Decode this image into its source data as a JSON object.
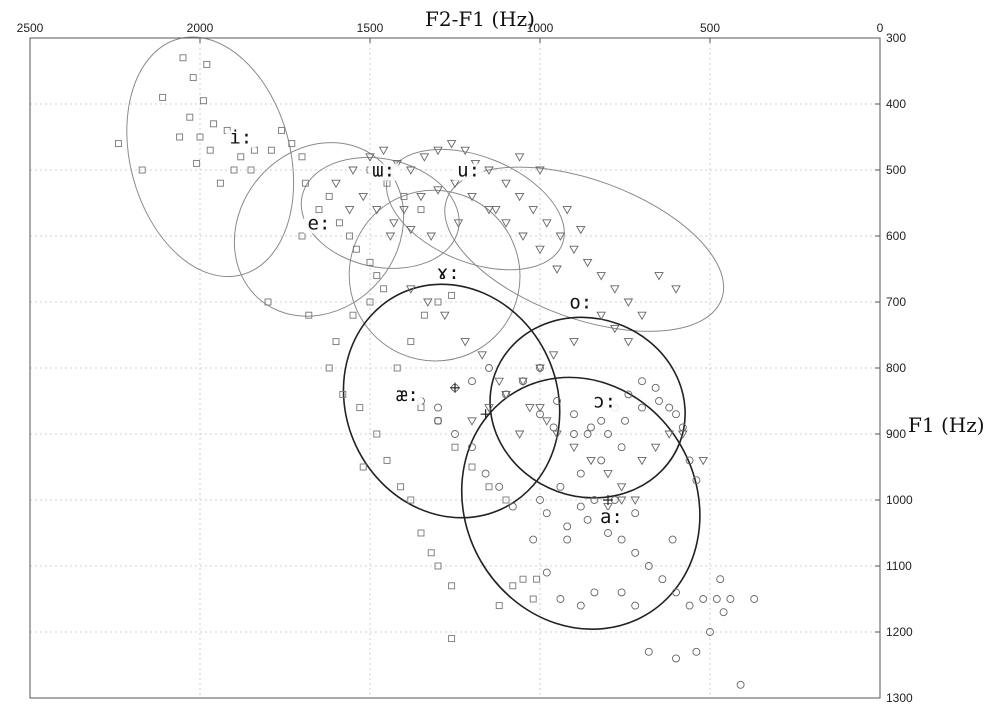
{
  "chart_data": {
    "type": "scatter",
    "title": "F2-F1 (Hz)",
    "xlabel": "F2-F1 (Hz)",
    "ylabel": "F1 (Hz)",
    "xlim": [
      2500,
      0
    ],
    "ylim": [
      300,
      1300
    ],
    "x_ticks": [
      "2500",
      "2000",
      "1500",
      "1000",
      "500",
      "0"
    ],
    "y_ticks": [
      "300",
      "400",
      "500",
      "600",
      "700",
      "800",
      "900",
      "1000",
      "1100",
      "1200",
      "1300"
    ],
    "grid": true,
    "vowels": [
      {
        "label": "i:",
        "x": 1880,
        "y": 460,
        "ellipse": {
          "cx": 1970,
          "cy": 480,
          "rx": 235,
          "ry": 185,
          "angle": -15,
          "weight": "light"
        }
      },
      {
        "label": "e:",
        "x": 1650,
        "y": 590,
        "ellipse": {
          "cx": 1650,
          "cy": 590,
          "rx": 270,
          "ry": 120,
          "angle": -50,
          "weight": "light"
        }
      },
      {
        "label": "ɯ:",
        "x": 1460,
        "y": 510,
        "ellipse": {
          "cx": 1470,
          "cy": 565,
          "rx": 235,
          "ry": 82,
          "angle": 12,
          "weight": "light"
        }
      },
      {
        "label": "u:",
        "x": 1210,
        "y": 510,
        "ellipse": {
          "cx": 1190,
          "cy": 560,
          "rx": 275,
          "ry": 80,
          "angle": 22,
          "weight": "light"
        }
      },
      {
        "label": "ɤ:",
        "x": 1270,
        "y": 665,
        "ellipse": {
          "cx": 1310,
          "cy": 660,
          "rx": 250,
          "ry": 130,
          "angle": -45,
          "weight": "light"
        }
      },
      {
        "label": "o:",
        "x": 880,
        "y": 710,
        "ellipse": {
          "cx": 870,
          "cy": 620,
          "rx": 430,
          "ry": 105,
          "angle": 20,
          "weight": "light"
        }
      },
      {
        "label": "æ:",
        "x": 1390,
        "y": 850,
        "ellipse": {
          "cx": 1260,
          "cy": 850,
          "rx": 350,
          "ry": 160,
          "angle": 65,
          "weight": "bold"
        }
      },
      {
        "label": "ɔ:",
        "x": 810,
        "y": 860,
        "ellipse": {
          "cx": 860,
          "cy": 860,
          "rx": 290,
          "ry": 135,
          "angle": 20,
          "weight": "bold"
        }
      },
      {
        "label": "a:",
        "x": 790,
        "y": 1035,
        "ellipse": {
          "cx": 880,
          "cy": 1005,
          "rx": 380,
          "ry": 175,
          "angle": 60,
          "weight": "bold"
        }
      }
    ],
    "series": [
      {
        "marker": "square",
        "points": [
          [
            2050,
            330
          ],
          [
            1980,
            340
          ],
          [
            2020,
            360
          ],
          [
            1990,
            395
          ],
          [
            2110,
            390
          ],
          [
            2030,
            420
          ],
          [
            1960,
            430
          ],
          [
            2000,
            450
          ],
          [
            2060,
            450
          ],
          [
            1920,
            440
          ],
          [
            1970,
            470
          ],
          [
            2010,
            490
          ],
          [
            1880,
            480
          ],
          [
            1850,
            500
          ],
          [
            1790,
            470
          ],
          [
            1760,
            440
          ],
          [
            1730,
            460
          ],
          [
            1700,
            480
          ],
          [
            1690,
            520
          ],
          [
            1650,
            560
          ],
          [
            1620,
            540
          ],
          [
            1590,
            580
          ],
          [
            1560,
            600
          ],
          [
            1540,
            620
          ],
          [
            1500,
            640
          ],
          [
            1480,
            660
          ],
          [
            1460,
            680
          ],
          [
            1500,
            700
          ],
          [
            1550,
            720
          ],
          [
            1600,
            760
          ],
          [
            1620,
            800
          ],
          [
            1580,
            840
          ],
          [
            1530,
            860
          ],
          [
            1480,
            900
          ],
          [
            1450,
            940
          ],
          [
            1410,
            980
          ],
          [
            1380,
            1000
          ],
          [
            1350,
            1050
          ],
          [
            1320,
            1080
          ],
          [
            1300,
            1100
          ],
          [
            1260,
            1130
          ],
          [
            1120,
            1160
          ],
          [
            1080,
            1130
          ],
          [
            1050,
            1120
          ],
          [
            1010,
            1120
          ],
          [
            1020,
            1150
          ],
          [
            1100,
            1000
          ],
          [
            1150,
            980
          ],
          [
            1200,
            950
          ],
          [
            1250,
            920
          ],
          [
            1300,
            880
          ],
          [
            1350,
            860
          ],
          [
            1420,
            800
          ],
          [
            1380,
            760
          ],
          [
            1340,
            720
          ],
          [
            1300,
            700
          ],
          [
            1260,
            690
          ],
          [
            1500,
            500
          ],
          [
            1450,
            520
          ],
          [
            1400,
            540
          ],
          [
            1350,
            560
          ],
          [
            1700,
            600
          ],
          [
            1520,
            950
          ],
          [
            1260,
            1210
          ],
          [
            2170,
            500
          ],
          [
            2240,
            460
          ],
          [
            1800,
            700
          ],
          [
            1680,
            720
          ],
          [
            1940,
            520
          ],
          [
            1900,
            500
          ],
          [
            1840,
            470
          ]
        ]
      },
      {
        "marker": "triangle",
        "points": [
          [
            1600,
            520
          ],
          [
            1550,
            500
          ],
          [
            1500,
            480
          ],
          [
            1460,
            470
          ],
          [
            1420,
            490
          ],
          [
            1380,
            500
          ],
          [
            1340,
            480
          ],
          [
            1300,
            470
          ],
          [
            1260,
            460
          ],
          [
            1220,
            470
          ],
          [
            1190,
            490
          ],
          [
            1150,
            500
          ],
          [
            1100,
            520
          ],
          [
            1060,
            540
          ],
          [
            1020,
            560
          ],
          [
            980,
            580
          ],
          [
            940,
            600
          ],
          [
            900,
            620
          ],
          [
            860,
            640
          ],
          [
            820,
            660
          ],
          [
            780,
            680
          ],
          [
            740,
            700
          ],
          [
            700,
            720
          ],
          [
            900,
            760
          ],
          [
            960,
            780
          ],
          [
            1000,
            800
          ],
          [
            1050,
            820
          ],
          [
            1100,
            840
          ],
          [
            1150,
            860
          ],
          [
            1200,
            880
          ],
          [
            1000,
            860
          ],
          [
            980,
            880
          ],
          [
            950,
            900
          ],
          [
            900,
            920
          ],
          [
            850,
            940
          ],
          [
            800,
            960
          ],
          [
            760,
            980
          ],
          [
            720,
            1000
          ],
          [
            700,
            940
          ],
          [
            660,
            920
          ],
          [
            620,
            900
          ],
          [
            580,
            900
          ],
          [
            520,
            940
          ],
          [
            860,
            700
          ],
          [
            820,
            720
          ],
          [
            780,
            740
          ],
          [
            740,
            760
          ],
          [
            1030,
            860
          ],
          [
            1060,
            900
          ],
          [
            1120,
            820
          ],
          [
            1170,
            780
          ],
          [
            1220,
            760
          ],
          [
            1280,
            720
          ],
          [
            1330,
            700
          ],
          [
            1380,
            680
          ],
          [
            1430,
            580
          ],
          [
            1400,
            560
          ],
          [
            1350,
            540
          ],
          [
            1300,
            530
          ],
          [
            1250,
            520
          ],
          [
            1200,
            540
          ],
          [
            1150,
            560
          ],
          [
            1100,
            580
          ],
          [
            1050,
            600
          ],
          [
            1000,
            620
          ],
          [
            950,
            650
          ],
          [
            600,
            680
          ],
          [
            650,
            660
          ],
          [
            760,
            1000
          ],
          [
            800,
            1010
          ],
          [
            1000,
            500
          ],
          [
            1060,
            480
          ],
          [
            920,
            560
          ],
          [
            880,
            590
          ],
          [
            1130,
            560
          ],
          [
            1240,
            580
          ],
          [
            1320,
            600
          ],
          [
            1380,
            590
          ],
          [
            1440,
            600
          ],
          [
            1480,
            560
          ],
          [
            1520,
            540
          ],
          [
            1560,
            560
          ]
        ]
      },
      {
        "marker": "circle",
        "points": [
          [
            1000,
            800
          ],
          [
            1050,
            820
          ],
          [
            1100,
            840
          ],
          [
            950,
            850
          ],
          [
            900,
            870
          ],
          [
            850,
            890
          ],
          [
            800,
            900
          ],
          [
            750,
            880
          ],
          [
            700,
            860
          ],
          [
            650,
            850
          ],
          [
            600,
            870
          ],
          [
            760,
            920
          ],
          [
            820,
            940
          ],
          [
            880,
            960
          ],
          [
            940,
            980
          ],
          [
            1000,
            1000
          ],
          [
            980,
            1020
          ],
          [
            920,
            1040
          ],
          [
            860,
            1030
          ],
          [
            800,
            1050
          ],
          [
            760,
            1060
          ],
          [
            720,
            1080
          ],
          [
            680,
            1100
          ],
          [
            640,
            1120
          ],
          [
            600,
            1140
          ],
          [
            560,
            1160
          ],
          [
            520,
            1150
          ],
          [
            480,
            1150
          ],
          [
            460,
            1170
          ],
          [
            440,
            1150
          ],
          [
            500,
            1200
          ],
          [
            540,
            1230
          ],
          [
            600,
            1240
          ],
          [
            680,
            1230
          ],
          [
            720,
            1160
          ],
          [
            760,
            1140
          ],
          [
            840,
            1140
          ],
          [
            880,
            1160
          ],
          [
            940,
            1150
          ],
          [
            980,
            1110
          ],
          [
            1020,
            1060
          ],
          [
            1080,
            1010
          ],
          [
            1120,
            980
          ],
          [
            1160,
            960
          ],
          [
            1200,
            920
          ],
          [
            1250,
            900
          ],
          [
            1300,
            880
          ],
          [
            1350,
            850
          ],
          [
            1000,
            870
          ],
          [
            960,
            890
          ],
          [
            900,
            900
          ],
          [
            860,
            900
          ],
          [
            820,
            880
          ],
          [
            780,
            860
          ],
          [
            740,
            840
          ],
          [
            700,
            820
          ],
          [
            660,
            830
          ],
          [
            620,
            860
          ],
          [
            580,
            890
          ],
          [
            560,
            940
          ],
          [
            540,
            970
          ],
          [
            610,
            1060
          ],
          [
            720,
            1020
          ],
          [
            780,
            1000
          ],
          [
            840,
            1000
          ],
          [
            880,
            1010
          ],
          [
            920,
            1060
          ],
          [
            410,
            1280
          ],
          [
            370,
            1150
          ],
          [
            470,
            1120
          ],
          [
            1150,
            800
          ],
          [
            1200,
            820
          ],
          [
            1250,
            830
          ],
          [
            1300,
            860
          ]
        ]
      }
    ],
    "plus_marks": [
      [
        1250,
        830
      ],
      [
        1160,
        870
      ],
      [
        800,
        1000
      ]
    ]
  }
}
